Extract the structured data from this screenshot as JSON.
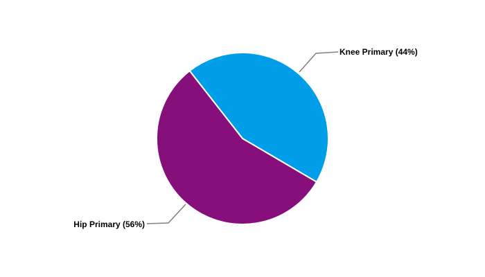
{
  "chart_data": {
    "type": "pie",
    "title": "",
    "start_angle_deg": -38,
    "direction": "clockwise",
    "slices": [
      {
        "name": "Knee Primary",
        "value": 44,
        "label": "Knee Primary (44%)",
        "color": "#009de9"
      },
      {
        "name": "Hip Primary",
        "value": 56,
        "label": "Hip Primary (56%)",
        "color": "#870f7b"
      }
    ],
    "slice_border_color": "#ffffff",
    "leader_line_color": "#808080",
    "legend": "none"
  }
}
